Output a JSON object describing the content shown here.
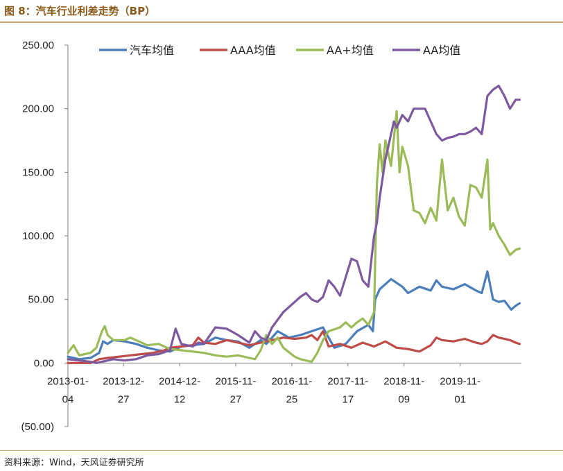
{
  "figure": {
    "title": "图 8：汽车行业利差走势（BP）",
    "source": "资料来源：Wind，天风证券研究所"
  },
  "chart_data": {
    "type": "line",
    "title": "汽车行业利差走势（BP）",
    "xlabel": "",
    "ylabel": "",
    "ylim": [
      -50,
      250
    ],
    "y_ticks": [
      250,
      200,
      150,
      100,
      50,
      0,
      -50
    ],
    "y_tick_labels": [
      "250.00",
      "200.00",
      "150.00",
      "100.00",
      "50.00",
      "0.00",
      "(50.00)"
    ],
    "x_range": [
      0,
      8
    ],
    "x_ticks": [
      {
        "x": 0.0,
        "line1": "2013-01-",
        "line2": "04"
      },
      {
        "x": 0.98,
        "line1": "2013-12-",
        "line2": "27"
      },
      {
        "x": 1.97,
        "line1": "2014-12-",
        "line2": "12"
      },
      {
        "x": 2.96,
        "line1": "2015-11-",
        "line2": "27"
      },
      {
        "x": 3.95,
        "line1": "2016-11-",
        "line2": "25"
      },
      {
        "x": 4.94,
        "line1": "2017-11-",
        "line2": "17"
      },
      {
        "x": 5.93,
        "line1": "2018-11-",
        "line2": "09"
      },
      {
        "x": 6.92,
        "line1": "2019-11-",
        "line2": "01"
      }
    ],
    "legend_position": "top",
    "series": [
      {
        "name": "汽车均值",
        "color": "#4a7ebb",
        "x": [
          0.0,
          0.2,
          0.4,
          0.55,
          0.62,
          0.7,
          0.8,
          1.0,
          1.2,
          1.4,
          1.6,
          1.8,
          2.0,
          2.2,
          2.4,
          2.6,
          2.8,
          3.0,
          3.2,
          3.3,
          3.4,
          3.5,
          3.7,
          3.9,
          4.1,
          4.3,
          4.5,
          4.6,
          4.7,
          4.9,
          5.1,
          5.3,
          5.38,
          5.42,
          5.5,
          5.6,
          5.7,
          5.8,
          5.9,
          6.0,
          6.2,
          6.4,
          6.5,
          6.6,
          6.8,
          7.0,
          7.2,
          7.3,
          7.4,
          7.5,
          7.6,
          7.7,
          7.82,
          7.9,
          7.97
        ],
        "values": [
          5,
          3,
          4,
          8,
          17,
          15,
          18,
          17,
          15,
          12,
          10,
          9,
          13,
          14,
          15,
          20,
          18,
          17,
          12,
          15,
          18,
          15,
          25,
          20,
          22,
          25,
          28,
          20,
          12,
          15,
          25,
          30,
          25,
          50,
          58,
          62,
          66,
          63,
          60,
          55,
          60,
          57,
          65,
          60,
          58,
          62,
          57,
          55,
          72,
          50,
          48,
          49,
          42,
          45,
          47
        ]
      },
      {
        "name": "AAA均值",
        "color": "#be4b48",
        "x": [
          0.0,
          0.2,
          0.4,
          0.55,
          0.7,
          0.9,
          1.1,
          1.3,
          1.5,
          1.7,
          1.8,
          2.0,
          2.2,
          2.3,
          2.4,
          2.6,
          2.8,
          3.0,
          3.2,
          3.4,
          3.6,
          3.8,
          4.0,
          4.2,
          4.3,
          4.4,
          4.5,
          4.6,
          4.8,
          5.0,
          5.2,
          5.4,
          5.6,
          5.8,
          6.0,
          6.2,
          6.4,
          6.5,
          6.6,
          6.8,
          7.0,
          7.2,
          7.3,
          7.4,
          7.5,
          7.6,
          7.8,
          7.9,
          7.97
        ],
        "values": [
          0,
          0,
          0,
          3,
          4,
          5,
          6,
          7,
          8,
          10,
          12,
          13,
          14,
          20,
          16,
          15,
          18,
          16,
          14,
          16,
          18,
          20,
          19,
          20,
          22,
          18,
          25,
          13,
          15,
          12,
          16,
          13,
          17,
          12,
          11,
          9,
          14,
          20,
          18,
          17,
          19,
          16,
          15,
          17,
          22,
          20,
          18,
          16,
          15
        ]
      },
      {
        "name": "AA+均值",
        "color": "#9bbb59",
        "x": [
          0.0,
          0.1,
          0.2,
          0.4,
          0.5,
          0.6,
          0.65,
          0.7,
          0.8,
          1.0,
          1.1,
          1.2,
          1.4,
          1.6,
          1.8,
          2.0,
          2.2,
          2.4,
          2.6,
          2.8,
          3.0,
          3.2,
          3.3,
          3.4,
          3.5,
          3.6,
          3.7,
          3.8,
          4.0,
          4.1,
          4.2,
          4.3,
          4.4,
          4.5,
          4.6,
          4.8,
          4.9,
          5.0,
          5.1,
          5.2,
          5.3,
          5.4,
          5.45,
          5.5,
          5.55,
          5.6,
          5.7,
          5.8,
          5.85,
          5.9,
          6.0,
          6.1,
          6.2,
          6.3,
          6.4,
          6.5,
          6.6,
          6.7,
          6.8,
          6.9,
          7.0,
          7.1,
          7.2,
          7.3,
          7.4,
          7.45,
          7.5,
          7.6,
          7.7,
          7.8,
          7.9,
          7.97
        ],
        "values": [
          8,
          14,
          6,
          8,
          12,
          25,
          29,
          22,
          18,
          18,
          20,
          18,
          14,
          15,
          11,
          10,
          9,
          8,
          6,
          5,
          6,
          4,
          3,
          10,
          22,
          15,
          20,
          12,
          5,
          3,
          2,
          1,
          8,
          18,
          25,
          28,
          32,
          28,
          32,
          35,
          30,
          40,
          140,
          172,
          150,
          175,
          155,
          198,
          150,
          170,
          155,
          120,
          118,
          110,
          122,
          112,
          160,
          120,
          130,
          115,
          108,
          140,
          138,
          130,
          160,
          105,
          110,
          100,
          93,
          85,
          89,
          90
        ]
      },
      {
        "name": "AA均值",
        "color": "#7d5aa0",
        "x": [
          0.0,
          0.2,
          0.4,
          0.5,
          0.6,
          0.8,
          1.0,
          1.2,
          1.4,
          1.6,
          1.8,
          1.9,
          2.0,
          2.2,
          2.3,
          2.4,
          2.6,
          2.8,
          3.0,
          3.2,
          3.3,
          3.4,
          3.5,
          3.6,
          3.8,
          4.0,
          4.1,
          4.2,
          4.3,
          4.4,
          4.5,
          4.6,
          4.7,
          4.8,
          5.0,
          5.1,
          5.2,
          5.3,
          5.35,
          5.4,
          5.45,
          5.5,
          5.6,
          5.7,
          5.75,
          5.8,
          5.9,
          6.0,
          6.1,
          6.2,
          6.3,
          6.4,
          6.5,
          6.6,
          6.7,
          6.8,
          6.9,
          7.0,
          7.1,
          7.2,
          7.3,
          7.4,
          7.5,
          7.6,
          7.7,
          7.8,
          7.9,
          7.97
        ],
        "values": [
          3,
          2,
          1,
          0,
          1,
          3,
          2,
          3,
          6,
          7,
          10,
          27,
          15,
          13,
          16,
          15,
          28,
          27,
          22,
          16,
          25,
          20,
          18,
          28,
          40,
          48,
          52,
          55,
          50,
          48,
          52,
          65,
          60,
          53,
          82,
          80,
          65,
          60,
          80,
          100,
          110,
          130,
          160,
          180,
          190,
          185,
          195,
          190,
          200,
          200,
          200,
          190,
          180,
          175,
          177,
          178,
          180,
          180,
          182,
          185,
          180,
          210,
          215,
          218,
          210,
          200,
          207,
          207
        ]
      }
    ]
  }
}
